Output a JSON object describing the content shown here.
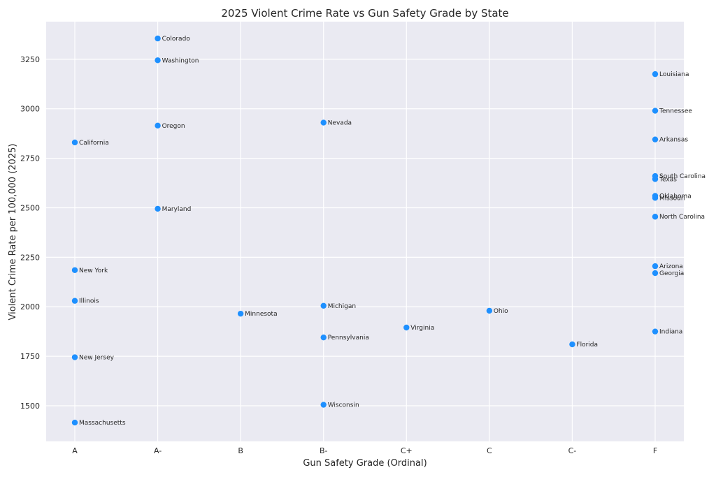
{
  "chart_data": {
    "type": "scatter",
    "title": "2025 Violent Crime Rate vs Gun Safety Grade by State",
    "xlabel": "Gun Safety Grade (Ordinal)",
    "ylabel": "Violent Crime Rate per 100,000 (2025)",
    "categories": [
      "A",
      "A-",
      "B",
      "B-",
      "C+",
      "C",
      "C-",
      "F"
    ],
    "yticks": [
      1500,
      1750,
      2000,
      2250,
      2500,
      2750,
      3000,
      3250
    ],
    "ylim": [
      1320,
      3440
    ],
    "grid": true,
    "point_color": "#1e90ff",
    "background_color": "#eaeaf2",
    "points": [
      {
        "state": "California",
        "grade": "A",
        "value": 2830
      },
      {
        "state": "New York",
        "grade": "A",
        "value": 2185
      },
      {
        "state": "Illinois",
        "grade": "A",
        "value": 2030
      },
      {
        "state": "New Jersey",
        "grade": "A",
        "value": 1745
      },
      {
        "state": "Massachusetts",
        "grade": "A",
        "value": 1415
      },
      {
        "state": "Colorado",
        "grade": "A-",
        "value": 3355
      },
      {
        "state": "Washington",
        "grade": "A-",
        "value": 3245
      },
      {
        "state": "Oregon",
        "grade": "A-",
        "value": 2915
      },
      {
        "state": "Maryland",
        "grade": "A-",
        "value": 2495
      },
      {
        "state": "Minnesota",
        "grade": "B",
        "value": 1965
      },
      {
        "state": "Nevada",
        "grade": "B-",
        "value": 2930
      },
      {
        "state": "Michigan",
        "grade": "B-",
        "value": 2005
      },
      {
        "state": "Pennsylvania",
        "grade": "B-",
        "value": 1845
      },
      {
        "state": "Wisconsin",
        "grade": "B-",
        "value": 1505
      },
      {
        "state": "Virginia",
        "grade": "C+",
        "value": 1895
      },
      {
        "state": "Ohio",
        "grade": "C",
        "value": 1980
      },
      {
        "state": "Florida",
        "grade": "C-",
        "value": 1810
      },
      {
        "state": "Louisiana",
        "grade": "F",
        "value": 3175
      },
      {
        "state": "Tennessee",
        "grade": "F",
        "value": 2990
      },
      {
        "state": "Arkansas",
        "grade": "F",
        "value": 2845
      },
      {
        "state": "South Carolina",
        "grade": "F",
        "value": 2660
      },
      {
        "state": "Texas",
        "grade": "F",
        "value": 2645
      },
      {
        "state": "Oklahoma",
        "grade": "F",
        "value": 2560
      },
      {
        "state": "Missouri",
        "grade": "F",
        "value": 2550
      },
      {
        "state": "North Carolina",
        "grade": "F",
        "value": 2455
      },
      {
        "state": "Arizona",
        "grade": "F",
        "value": 2205
      },
      {
        "state": "Georgia",
        "grade": "F",
        "value": 2170
      },
      {
        "state": "Indiana",
        "grade": "F",
        "value": 1875
      }
    ]
  }
}
